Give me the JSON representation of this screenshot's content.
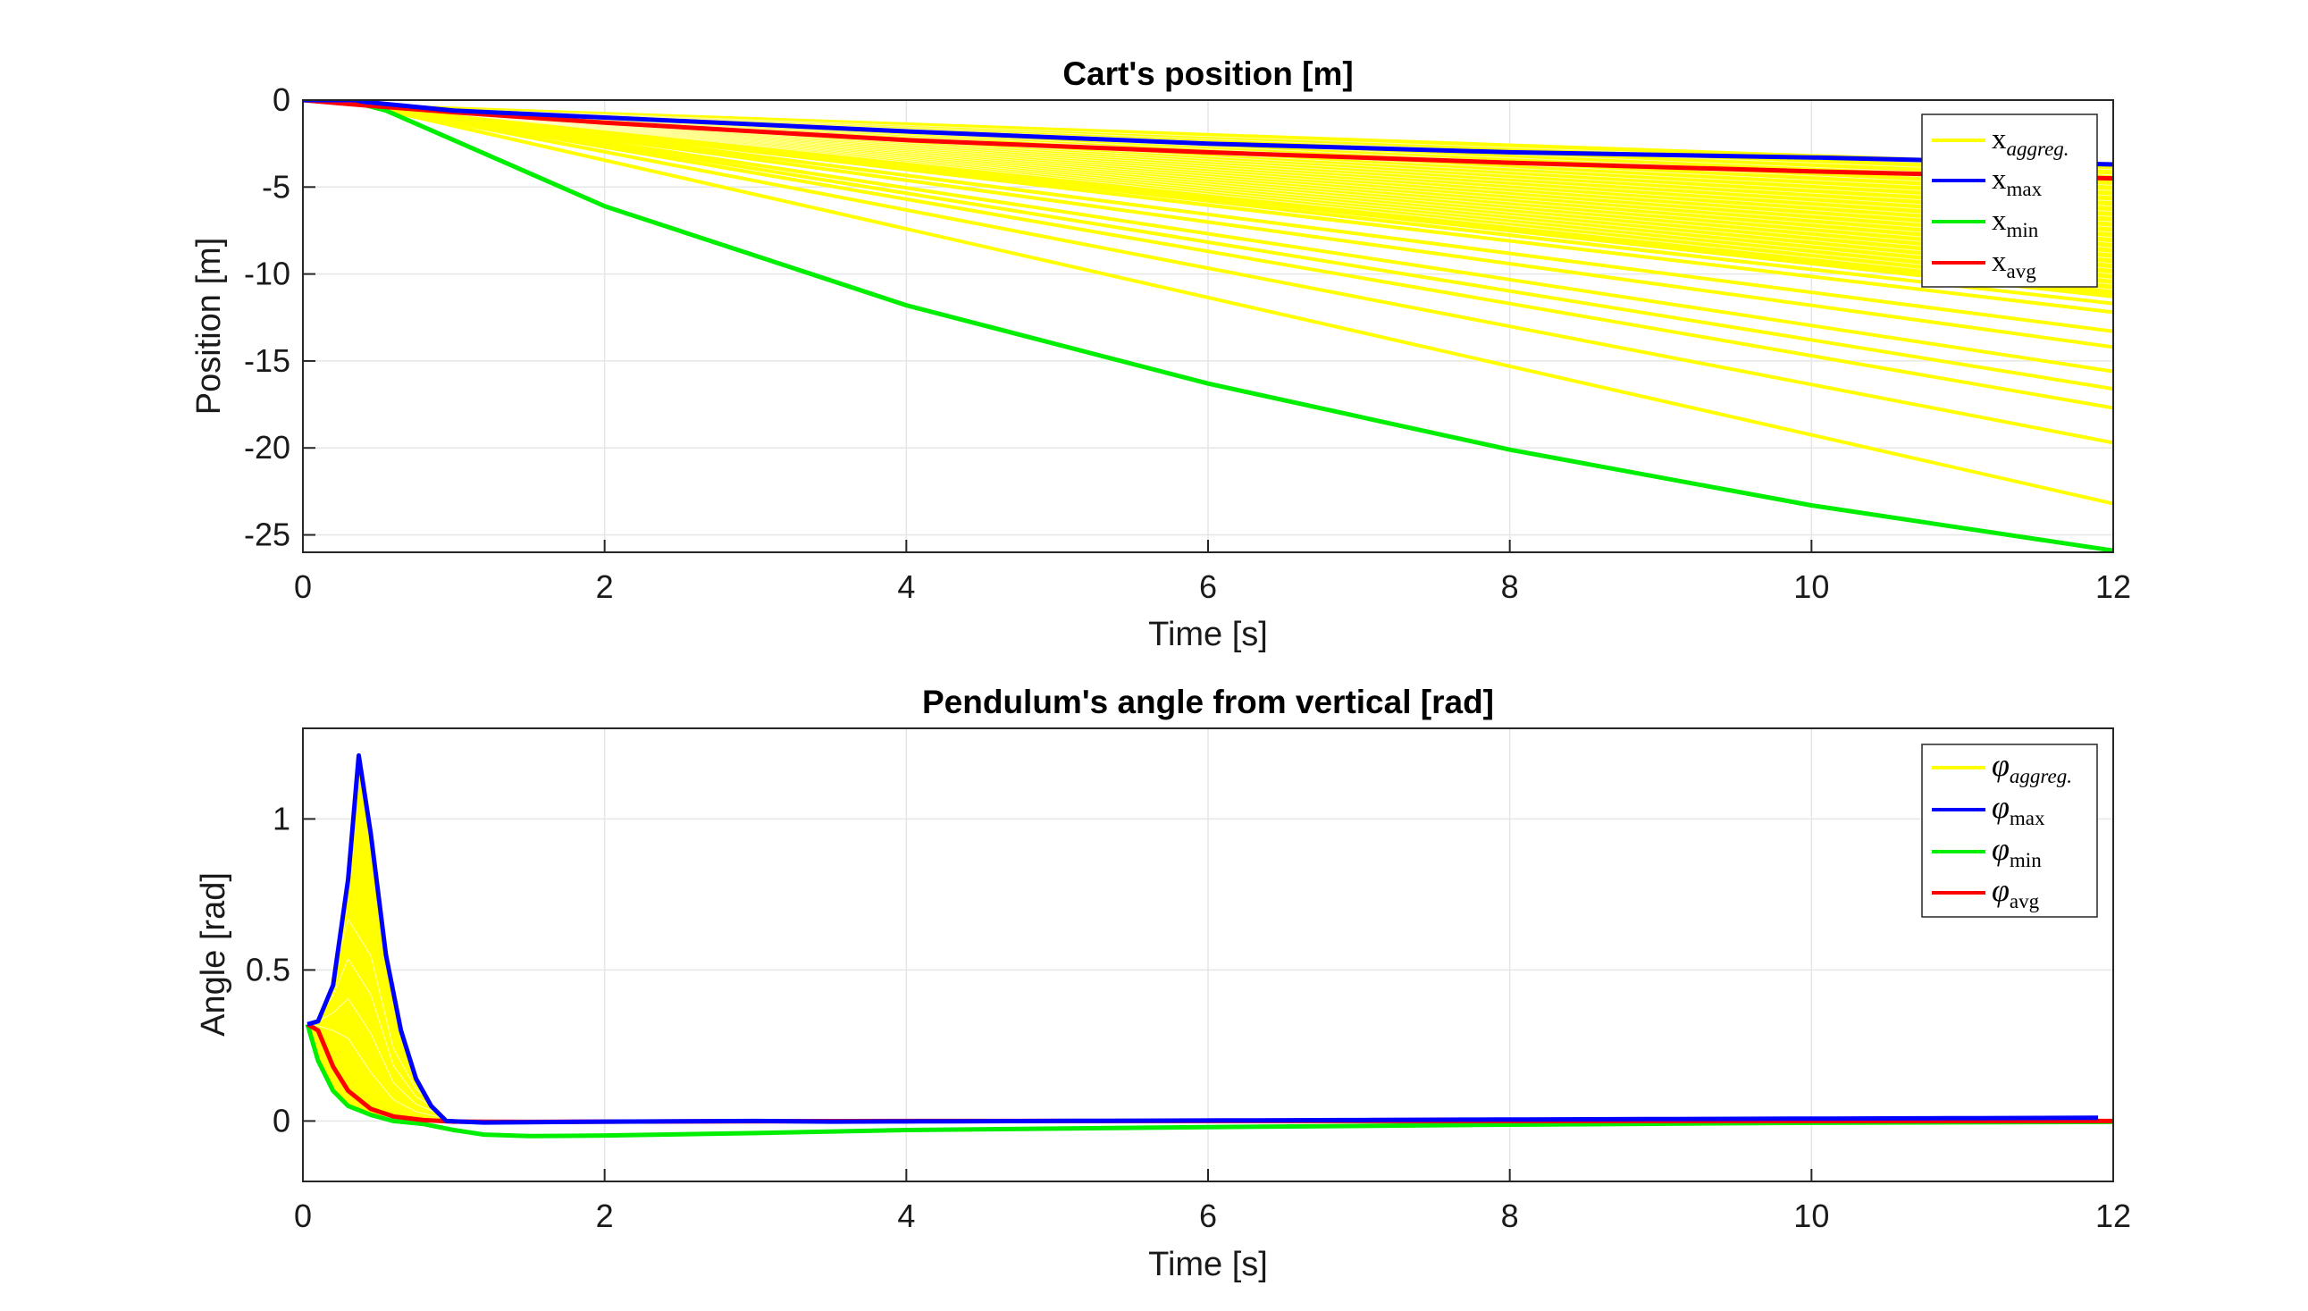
{
  "chart_data": [
    {
      "type": "line",
      "title": "Cart's position [m]",
      "xlabel": "Time [s]",
      "ylabel": "Position [m]",
      "xlim": [
        0,
        12
      ],
      "ylim": [
        -26,
        0
      ],
      "xticks": [
        "0",
        "2",
        "4",
        "6",
        "8",
        "10",
        "12"
      ],
      "yticks": [
        "0",
        "-5",
        "-10",
        "-15",
        "-20",
        "-25"
      ],
      "ytick_values": [
        0,
        -5,
        -10,
        -15,
        -20,
        -25
      ],
      "grid": true,
      "legend_position": "top-right",
      "aggregate": {
        "name": "x_aggreg.",
        "color": "#ffff00",
        "x": [
          0,
          0.4,
          12
        ],
        "value_at_end": [
          -3.8,
          -4.1,
          -4.4,
          -4.7,
          -5.0,
          -5.3,
          -5.6,
          -5.9,
          -6.2,
          -6.5,
          -6.8,
          -7.1,
          -7.4,
          -7.7,
          -8.0,
          -8.3,
          -8.6,
          -8.9,
          -9.2,
          -9.5,
          -9.8,
          -10.1,
          -10.4,
          -10.7,
          -11.0,
          -11.3,
          -11.7,
          -12.2,
          -13.3,
          -14.2,
          -15.6,
          -16.6,
          -17.7,
          -19.7,
          -23.2
        ]
      },
      "series": [
        {
          "name": "x_max",
          "label_main": "x",
          "label_sub": "max",
          "color": "#0000ff",
          "x": [
            0,
            0.35,
            0.4,
            1,
            2,
            4,
            6,
            8,
            10,
            12
          ],
          "y": [
            0,
            0,
            -0.1,
            -0.6,
            -1.0,
            -1.8,
            -2.5,
            -3.0,
            -3.3,
            -3.7
          ]
        },
        {
          "name": "x_min",
          "label_main": "x",
          "label_sub": "min",
          "color": "#00ee00",
          "x": [
            0,
            0.4,
            0.55,
            1,
            2,
            4,
            6,
            8,
            10,
            12
          ],
          "y": [
            0,
            -0.25,
            -0.6,
            -2.3,
            -6.1,
            -11.8,
            -16.3,
            -20.1,
            -23.3,
            -25.9
          ]
        },
        {
          "name": "x_avg",
          "label_main": "x",
          "label_sub": "avg",
          "color": "#ff0000",
          "x": [
            0,
            0.4,
            1,
            2,
            4,
            6,
            8,
            10,
            12
          ],
          "y": [
            0,
            -0.3,
            -0.7,
            -1.3,
            -2.3,
            -3.0,
            -3.6,
            -4.1,
            -4.5
          ]
        }
      ],
      "legend_entries": [
        {
          "main": "x",
          "sub": "aggreg.",
          "sub_italic": true,
          "color": "#ffff00"
        },
        {
          "main": "x",
          "sub": "max",
          "sub_italic": false,
          "color": "#0000ff"
        },
        {
          "main": "x",
          "sub": "min",
          "sub_italic": false,
          "color": "#00ee00"
        },
        {
          "main": "x",
          "sub": "avg",
          "sub_italic": false,
          "color": "#ff0000"
        }
      ]
    },
    {
      "type": "line",
      "title": "Pendulum's angle from vertical [rad]",
      "xlabel": "Time [s]",
      "ylabel": "Angle [rad]",
      "xlim": [
        0,
        12
      ],
      "ylim": [
        -0.2,
        1.3
      ],
      "xticks": [
        "0",
        "2",
        "4",
        "6",
        "8",
        "10",
        "12"
      ],
      "yticks": [
        "1",
        "0.5",
        "0"
      ],
      "ytick_values": [
        1,
        0.5,
        0
      ],
      "grid": true,
      "legend_position": "top-right",
      "aggregate": {
        "name": "phi_aggreg.",
        "color": "#ffff00",
        "fill_upper_x": [
          0.03,
          0.1,
          0.2,
          0.3,
          0.37,
          0.45,
          0.55,
          0.65,
          0.75,
          0.85,
          0.95
        ],
        "fill_upper_y": [
          0.32,
          0.33,
          0.45,
          0.8,
          1.21,
          0.95,
          0.55,
          0.3,
          0.14,
          0.05,
          0.0
        ],
        "fill_lower_x": [
          0.95,
          0.7,
          0.5,
          0.35,
          0.2,
          0.1,
          0.03
        ],
        "fill_lower_y": [
          0.0,
          0.0,
          0.02,
          0.04,
          0.1,
          0.2,
          0.32
        ],
        "faint_peaks": [
          0.25,
          0.45,
          0.65,
          0.85
        ]
      },
      "series": [
        {
          "name": "phi_max",
          "label_sub": "max",
          "color": "#0000ff",
          "x": [
            0.03,
            0.1,
            0.2,
            0.3,
            0.37,
            0.45,
            0.55,
            0.65,
            0.75,
            0.85,
            0.95,
            1.2,
            2,
            3,
            4,
            5,
            6,
            7,
            8,
            9,
            10,
            11,
            12
          ],
          "y": [
            0.32,
            0.33,
            0.45,
            0.8,
            1.21,
            0.95,
            0.55,
            0.3,
            0.14,
            0.05,
            0.0,
            -0.005,
            -0.002,
            0.0,
            0.002,
            0.004,
            0.005,
            0.007,
            0.008,
            0.01,
            0.01,
            0.012,
            0.013
          ]
        },
        {
          "name": "phi_min",
          "label_sub": "min",
          "color": "#00ee00",
          "x": [
            0.03,
            0.1,
            0.2,
            0.3,
            0.45,
            0.6,
            0.8,
            1.0,
            1.2,
            1.5,
            2,
            3,
            4,
            6,
            8,
            10,
            12
          ],
          "y": [
            0.32,
            0.2,
            0.1,
            0.05,
            0.02,
            0.0,
            -0.01,
            -0.03,
            -0.045,
            -0.05,
            -0.048,
            -0.04,
            -0.03,
            -0.02,
            -0.012,
            -0.006,
            -0.003
          ]
        },
        {
          "name": "phi_avg",
          "label_sub": "avg",
          "color": "#ff0000",
          "x": [
            0.03,
            0.1,
            0.2,
            0.3,
            0.45,
            0.6,
            0.8,
            1.0,
            1.5,
            2,
            4,
            6,
            8,
            10,
            12
          ],
          "y": [
            0.32,
            0.3,
            0.18,
            0.1,
            0.04,
            0.015,
            0.003,
            -0.002,
            -0.003,
            -0.002,
            0.0,
            0.0,
            0.0,
            0.0,
            0.0
          ]
        }
      ],
      "legend_entries": [
        {
          "main": "φ",
          "sub": "aggreg.",
          "sub_italic": true,
          "color": "#ffff00"
        },
        {
          "main": "φ",
          "sub": "max",
          "sub_italic": false,
          "color": "#0000ff"
        },
        {
          "main": "φ",
          "sub": "min",
          "sub_italic": false,
          "color": "#00ee00"
        },
        {
          "main": "φ",
          "sub": "avg",
          "sub_italic": false,
          "color": "#ff0000"
        }
      ]
    }
  ]
}
